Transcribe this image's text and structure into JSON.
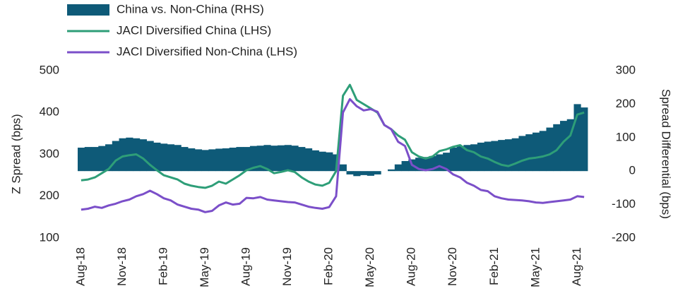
{
  "chart_data": {
    "type": "combo",
    "categories": [
      "Aug-18",
      null,
      null,
      null,
      null,
      null,
      "Nov-18",
      null,
      null,
      null,
      null,
      null,
      "Feb-19",
      null,
      null,
      null,
      null,
      null,
      "May-19",
      null,
      null,
      null,
      null,
      null,
      "Aug-19",
      null,
      null,
      null,
      null,
      null,
      "Nov-19",
      null,
      null,
      null,
      null,
      null,
      "Feb-20",
      null,
      null,
      null,
      null,
      null,
      "May-20",
      null,
      null,
      null,
      null,
      null,
      "Aug-20",
      null,
      null,
      null,
      null,
      null,
      "Nov-20",
      null,
      null,
      null,
      null,
      null,
      "Feb-21",
      null,
      null,
      null,
      null,
      null,
      "May-21",
      null,
      null,
      null,
      null,
      null,
      "Aug-21",
      null
    ],
    "series": [
      {
        "name": "China vs. Non-China (RHS)",
        "type": "bar",
        "axis": "y2",
        "color": "#0e5a78",
        "values": [
          70,
          72,
          72,
          75,
          80,
          90,
          98,
          100,
          98,
          95,
          90,
          85,
          82,
          80,
          78,
          72,
          68,
          65,
          63,
          65,
          67,
          68,
          70,
          72,
          72,
          75,
          76,
          78,
          76,
          77,
          78,
          76,
          72,
          68,
          62,
          58,
          56,
          50,
          20,
          -10,
          -15,
          -12,
          -14,
          -10,
          0,
          5,
          20,
          30,
          35,
          40,
          42,
          45,
          50,
          55,
          70,
          75,
          78,
          80,
          85,
          88,
          90,
          93,
          95,
          98,
          105,
          110,
          115,
          120,
          130,
          140,
          150,
          155,
          200,
          190
        ]
      },
      {
        "name": "JACI Diversified China (LHS)",
        "type": "line",
        "color": "#2e9e78",
        "values": [
          238,
          240,
          245,
          255,
          265,
          285,
          295,
          298,
          300,
          290,
          275,
          262,
          250,
          245,
          240,
          230,
          225,
          222,
          220,
          225,
          235,
          230,
          240,
          250,
          262,
          268,
          272,
          265,
          255,
          258,
          262,
          258,
          245,
          235,
          228,
          225,
          232,
          260,
          440,
          466,
          430,
          420,
          410,
          400,
          370,
          360,
          345,
          335,
          305,
          295,
          290,
          295,
          308,
          312,
          318,
          322,
          310,
          305,
          295,
          290,
          282,
          275,
          272,
          278,
          285,
          290,
          292,
          295,
          300,
          310,
          330,
          345,
          395,
          400
        ]
      },
      {
        "name": "JACI Diversified Non-China (LHS)",
        "type": "line",
        "color": "#7b4fc9",
        "values": [
          168,
          170,
          175,
          172,
          178,
          182,
          188,
          192,
          200,
          205,
          213,
          205,
          195,
          190,
          180,
          175,
          170,
          168,
          162,
          165,
          178,
          185,
          180,
          182,
          196,
          195,
          198,
          192,
          190,
          188,
          186,
          185,
          180,
          175,
          172,
          170,
          174,
          200,
          400,
          432,
          415,
          405,
          408,
          402,
          370,
          360,
          330,
          320,
          275,
          265,
          262,
          265,
          272,
          265,
          252,
          245,
          232,
          225,
          215,
          212,
          200,
          195,
          192,
          191,
          190,
          188,
          185,
          184,
          186,
          188,
          190,
          192,
          200,
          198
        ]
      }
    ],
    "y_label": "Z Spread (bps)",
    "y2_label": "Spread Differential (bps)",
    "ylim": [
      100,
      500
    ],
    "yticks": [
      100,
      200,
      300,
      400,
      500
    ],
    "y2lim": [
      -200,
      300
    ],
    "y2ticks": [
      -200,
      -100,
      0,
      100,
      200,
      300
    ]
  }
}
